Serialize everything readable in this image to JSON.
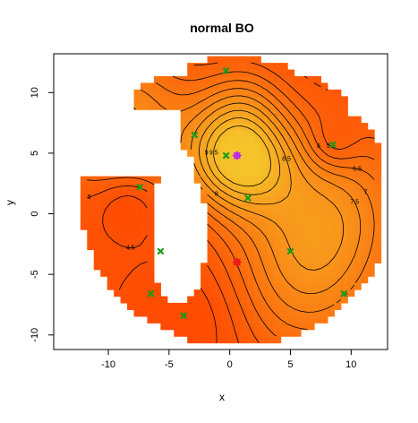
{
  "chart_data": {
    "type": "contour",
    "title": "normal BO",
    "xlabel": "x",
    "ylabel": "y",
    "xlim": [
      -14.5,
      13
    ],
    "ylim": [
      -11.2,
      13.2
    ],
    "x_ticks": [
      "-10",
      "-5",
      "0",
      "5",
      "10"
    ],
    "y_ticks": [
      "-10",
      "-5",
      "0",
      "5",
      "10"
    ],
    "contour_labels": [
      "9.5",
      "9",
      "8.5",
      "8",
      "7.5",
      "7",
      "6.5",
      "6",
      "5.5",
      "5",
      "4.5",
      "4"
    ],
    "observed_points": [
      {
        "x": -0.3,
        "y": 11.8
      },
      {
        "x": -2.9,
        "y": 6.5
      },
      {
        "x": -0.3,
        "y": 4.8
      },
      {
        "x": 1.5,
        "y": 1.3
      },
      {
        "x": 8.5,
        "y": 5.7
      },
      {
        "x": -7.4,
        "y": 2.2
      },
      {
        "x": -5.7,
        "y": -3.1
      },
      {
        "x": -6.5,
        "y": -6.6
      },
      {
        "x": -3.8,
        "y": -8.4
      },
      {
        "x": 5.0,
        "y": -3.1
      },
      {
        "x": 9.4,
        "y": -6.6
      }
    ],
    "maximum_point": {
      "x": 0.6,
      "y": 4.8
    },
    "next_point": {
      "x": 0.6,
      "y": -4.0
    },
    "colors": {
      "high": "#f5c32a",
      "low": "#ff4400",
      "observed": "#1a9a1a",
      "maximum": "#bb2ee8",
      "next": "#ee1a1a"
    }
  }
}
